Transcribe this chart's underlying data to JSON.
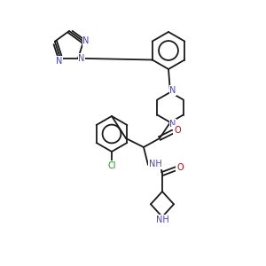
{
  "background_color": "#ffffff",
  "bond_color": "#1a1a1a",
  "nitrogen_color": "#4444cc",
  "oxygen_color": "#cc0000",
  "chlorine_color": "#00aa00",
  "figsize": [
    3.0,
    3.0
  ],
  "dpi": 100,
  "lw": 1.3,
  "fs": 7.0
}
